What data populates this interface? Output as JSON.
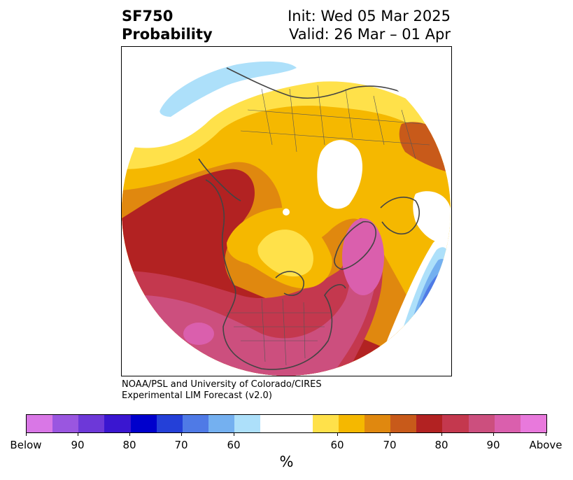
{
  "header": {
    "title_line1": "SF750",
    "title_line2": "Probability",
    "init_text": "Init: Wed 05 Mar 2025",
    "valid_text": "Valid: 26 Mar – 01 Apr"
  },
  "credit": {
    "line1": "NOAA/PSL and University of Colorado/CIRES",
    "line2": "Experimental LIM Forecast (v2.0)"
  },
  "colorbar": {
    "colors": [
      "#d977e6",
      "#9a56e0",
      "#6d38d8",
      "#3a16d0",
      "#0000cc",
      "#2440d8",
      "#4f7ae6",
      "#74b0f0",
      "#ade0fa",
      "#ffffff",
      "#ffe14a",
      "#f5b800",
      "#e0880f",
      "#c85a1a",
      "#b22222",
      "#c4384e",
      "#cc4f7e",
      "#da5fad",
      "#e879dc"
    ],
    "labels": [
      "Below",
      "90",
      "80",
      "70",
      "60",
      "60",
      "70",
      "80",
      "90",
      "Above"
    ],
    "unit": "%"
  },
  "map": {
    "projection": "north-polar-stereographic",
    "colors": {
      "yellow": "#ffe14a",
      "gold": "#f5b800",
      "orange": "#e0880f",
      "rust": "#c85a1a",
      "red": "#b22222",
      "crimson": "#c4384e",
      "rose": "#cc4f7e",
      "pink": "#da5fad",
      "lightblue": "#ade0fa",
      "skyblue": "#74b0f0",
      "blue": "#4f7ae6",
      "coast": "#444444"
    }
  }
}
